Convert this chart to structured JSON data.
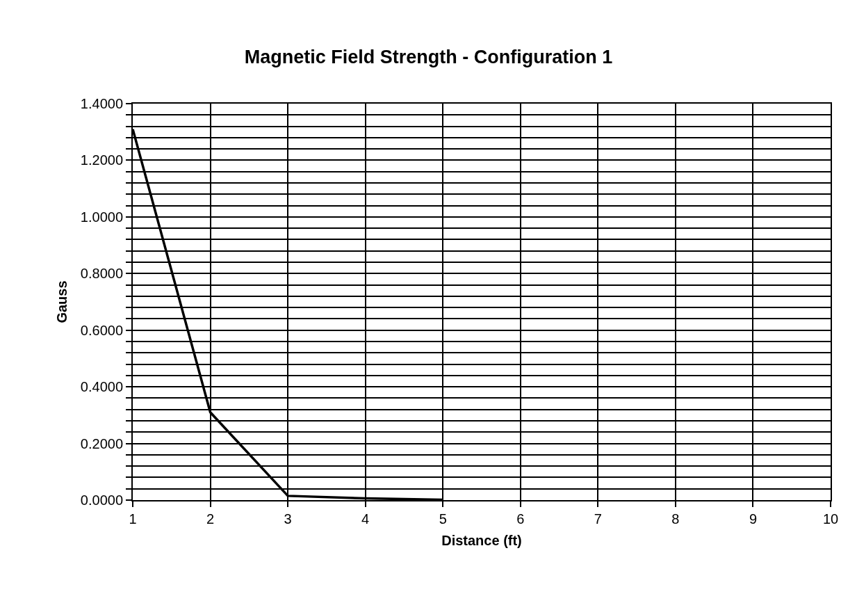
{
  "chart_data": {
    "type": "line",
    "title": "Magnetic Field Strength - Configuration 1",
    "xlabel": "Distance (ft)",
    "ylabel": "Gauss",
    "x": [
      1,
      2,
      3,
      4,
      5
    ],
    "series": [
      {
        "color": "#000000",
        "values": [
          1.31,
          0.31,
          0.015,
          0.006,
          0.001
        ]
      }
    ],
    "xlim": [
      1,
      10
    ],
    "xticks": [
      1,
      2,
      3,
      4,
      5,
      6,
      7,
      8,
      9,
      10
    ],
    "ylim": [
      0,
      1.4
    ],
    "yticks": [
      {
        "value": 0,
        "label": "0.0000"
      },
      {
        "value": 0.04,
        "label": null
      },
      {
        "value": 0.08,
        "label": null
      },
      {
        "value": 0.12,
        "label": null
      },
      {
        "value": 0.16,
        "label": null
      },
      {
        "value": 0.2,
        "label": "0.2000"
      },
      {
        "value": 0.24,
        "label": null
      },
      {
        "value": 0.28,
        "label": null
      },
      {
        "value": 0.32,
        "label": null
      },
      {
        "value": 0.36,
        "label": null
      },
      {
        "value": 0.4,
        "label": "0.4000"
      },
      {
        "value": 0.44,
        "label": null
      },
      {
        "value": 0.48,
        "label": null
      },
      {
        "value": 0.52,
        "label": null
      },
      {
        "value": 0.56,
        "label": null
      },
      {
        "value": 0.6,
        "label": "0.6000"
      },
      {
        "value": 0.64,
        "label": null
      },
      {
        "value": 0.68,
        "label": null
      },
      {
        "value": 0.72,
        "label": null
      },
      {
        "value": 0.76,
        "label": null
      },
      {
        "value": 0.8,
        "label": "0.8000"
      },
      {
        "value": 0.84,
        "label": null
      },
      {
        "value": 0.88,
        "label": null
      },
      {
        "value": 0.92,
        "label": null
      },
      {
        "value": 0.96,
        "label": null
      },
      {
        "value": 1.0,
        "label": "1.0000"
      },
      {
        "value": 1.04,
        "label": null
      },
      {
        "value": 1.08,
        "label": null
      },
      {
        "value": 1.12,
        "label": null
      },
      {
        "value": 1.16,
        "label": null
      },
      {
        "value": 1.2,
        "label": "1.2000"
      },
      {
        "value": 1.24,
        "label": null
      },
      {
        "value": 1.28,
        "label": null
      },
      {
        "value": 1.32,
        "label": null
      },
      {
        "value": 1.36,
        "label": null
      },
      {
        "value": 1.4,
        "label": "1.4000"
      }
    ],
    "grid": true,
    "marker": "none",
    "line_style": "solid"
  }
}
